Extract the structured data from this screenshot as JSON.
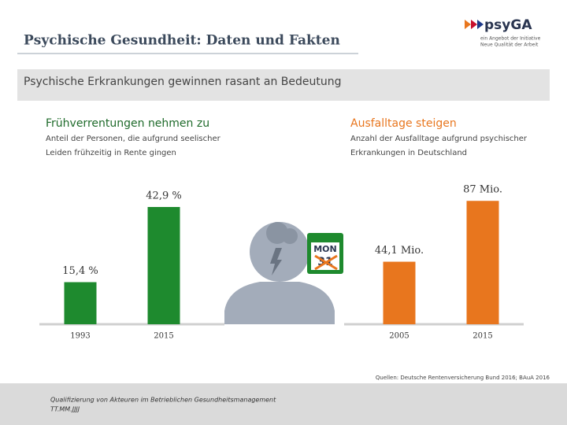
{
  "title": "Psychische Gesundheit: Daten und Fakten",
  "logo": {
    "name": "psyGA",
    "tagline": [
      "ein Angebot der Initiative",
      "Neue Qualität der Arbeit"
    ]
  },
  "banner": "Psychische Erkrankungen gewinnen rasant an Bedeutung",
  "calendar": {
    "day": "MON",
    "date": "31"
  },
  "source": "Quellen: Deutsche Rentenversicherung Bund 2016; BAuA 2016",
  "footer": [
    "Qualifizierung von Akteuren im Betrieblichen Gesundheitsmanagement",
    "TT.MM.JJJJ"
  ],
  "chart_data": [
    {
      "type": "bar",
      "title": "Frühverrentungen nehmen zu",
      "subtitle": [
        "Anteil der Personen, die aufgrund seelischer",
        "Leiden frühzeitig in Rente gingen"
      ],
      "categories": [
        "1993",
        "2015"
      ],
      "values": [
        15.4,
        42.9
      ],
      "value_labels": [
        "15,4 %",
        "42,9 %"
      ],
      "color": "#1e8a2e",
      "ylim": [
        0,
        52.4
      ]
    },
    {
      "type": "bar",
      "title": "Ausfalltage steigen",
      "subtitle": [
        "Anzahl der Ausfalltage aufgrund psychischer",
        "Erkrankungen in Deutschland"
      ],
      "categories": [
        "2005",
        "2015"
      ],
      "values": [
        44.1,
        87
      ],
      "value_labels": [
        "44,1 Mio.",
        "87 Mio."
      ],
      "color": "#e8761e",
      "ylim": [
        0,
        101
      ]
    }
  ]
}
